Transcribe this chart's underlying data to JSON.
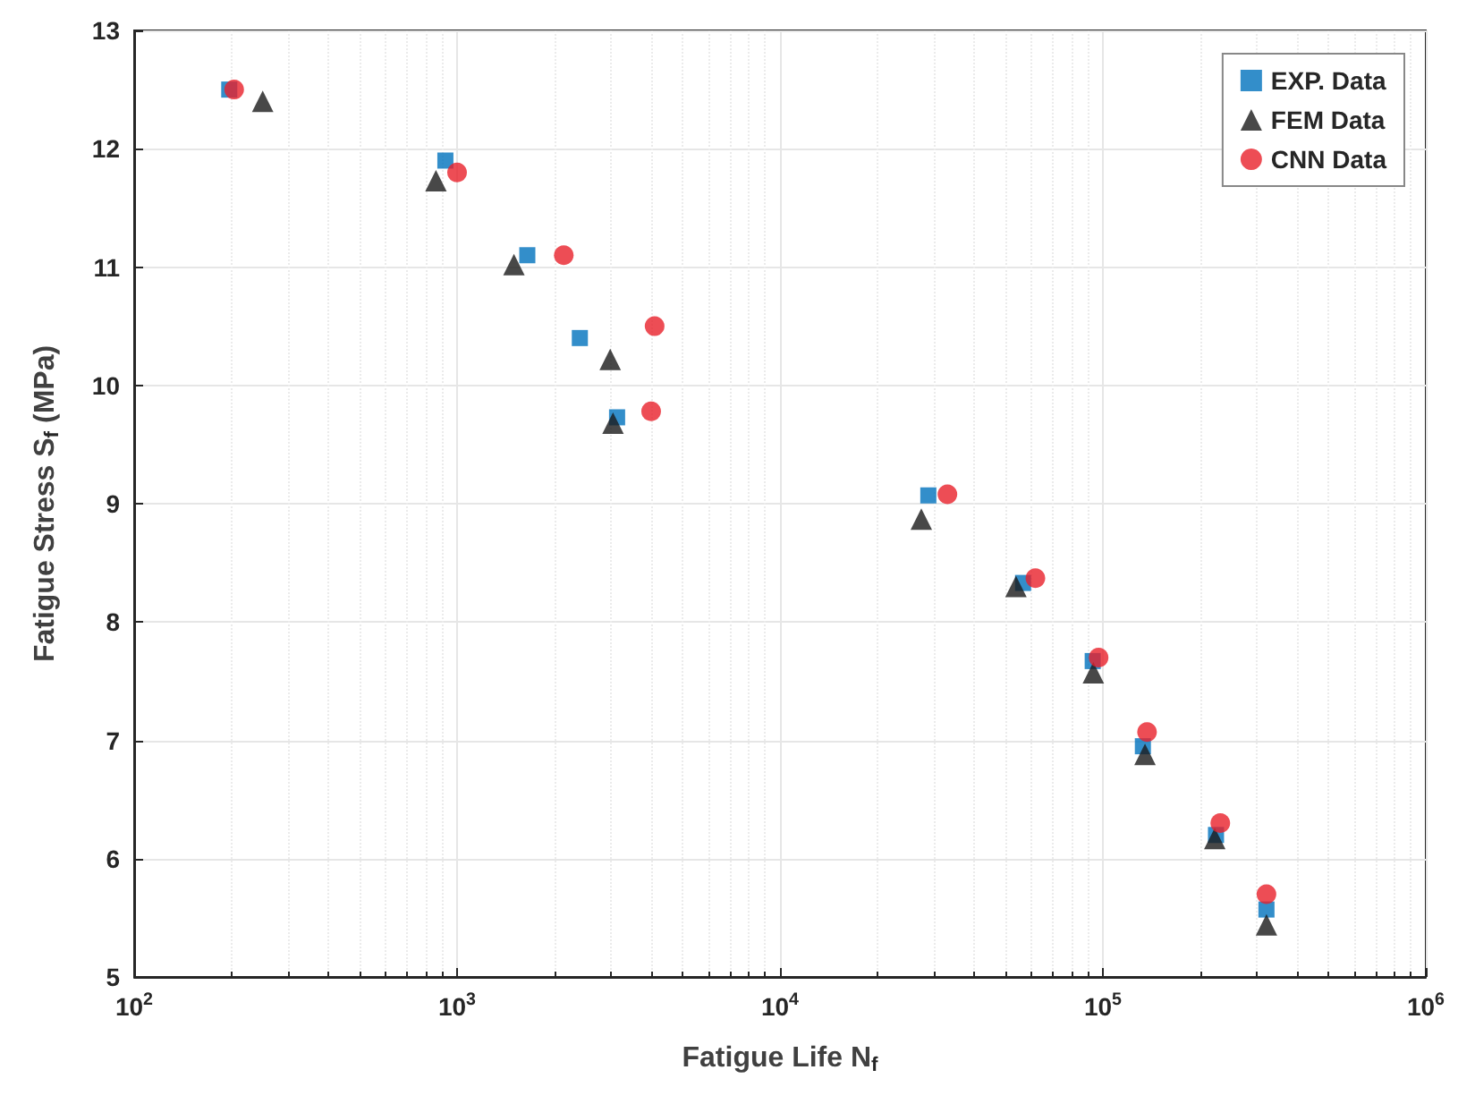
{
  "chart_data": {
    "type": "scatter",
    "xlabel": "Fatigue Life N$_{f}$",
    "ylabel": "Fatigue Stress S$_{f}$ (MPa)",
    "log": "x",
    "xlim": [
      100,
      1000000
    ],
    "xticks": [
      {
        "value": 100,
        "label": "10$^{2}$"
      },
      {
        "value": 1000,
        "label": "10$^{3}$"
      },
      {
        "value": 10000,
        "label": "10$^{4}$"
      },
      {
        "value": 100000,
        "label": "10$^{5}$"
      },
      {
        "value": 1000000,
        "label": "10$^{6}$"
      }
    ],
    "ylim": [
      5,
      13
    ],
    "yticks": [
      5,
      6,
      7,
      8,
      9,
      10,
      11,
      12,
      13
    ],
    "grid": true,
    "legend": "top right",
    "series": [
      {
        "name": "EXP. Data",
        "color": "#0072bd",
        "marker": "square",
        "x": [
          197,
          920,
          1650,
          2400,
          3130,
          28800,
          56600,
          93000,
          133000,
          224000,
          321000
        ],
        "values": [
          12.5,
          11.9,
          11.1,
          10.4,
          9.73,
          9.07,
          8.33,
          7.67,
          6.95,
          6.2,
          5.57
        ]
      },
      {
        "name": "FEM Data",
        "color": "#1a1a1a",
        "marker": "triangle",
        "x": [
          250,
          860,
          1500,
          2980,
          3040,
          27400,
          53800,
          93400,
          135000,
          222000,
          321000
        ],
        "values": [
          12.4,
          11.73,
          11.02,
          10.22,
          9.68,
          8.87,
          8.3,
          7.57,
          6.88,
          6.17,
          5.44
        ]
      },
      {
        "name": "CNN Data",
        "color": "#e8202a",
        "marker": "circle",
        "x": [
          204,
          1000,
          2140,
          4090,
          3990,
          33000,
          61800,
          97000,
          137000,
          231000,
          321000
        ],
        "values": [
          12.5,
          11.8,
          11.1,
          10.5,
          9.78,
          9.08,
          8.37,
          7.7,
          7.07,
          6.3,
          5.7
        ]
      }
    ]
  }
}
